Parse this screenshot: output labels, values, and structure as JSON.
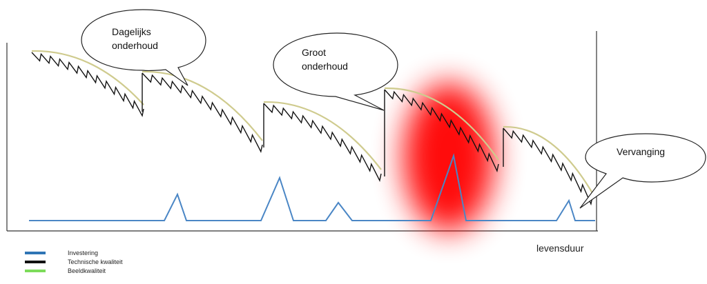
{
  "callouts": {
    "daily": {
      "line1": "Dagelijks",
      "line2": "onderhoud"
    },
    "major": {
      "line1": "Groot",
      "line2": "onderhoud"
    },
    "replace": {
      "line1": "Vervanging"
    }
  },
  "axis": {
    "x_label": "levensduur"
  },
  "legend": {
    "items": [
      {
        "label": "Investering",
        "color": "#2f75b5"
      },
      {
        "label": "Technische kwaliteit",
        "color": "#111111"
      },
      {
        "label": "Beeldkwaliteit",
        "color": "#7ddc5a"
      }
    ]
  },
  "colors": {
    "investment": "#4a86c5",
    "technical": "#111111",
    "visual": "#d6d3a0",
    "highlight": "#ff0000"
  }
}
